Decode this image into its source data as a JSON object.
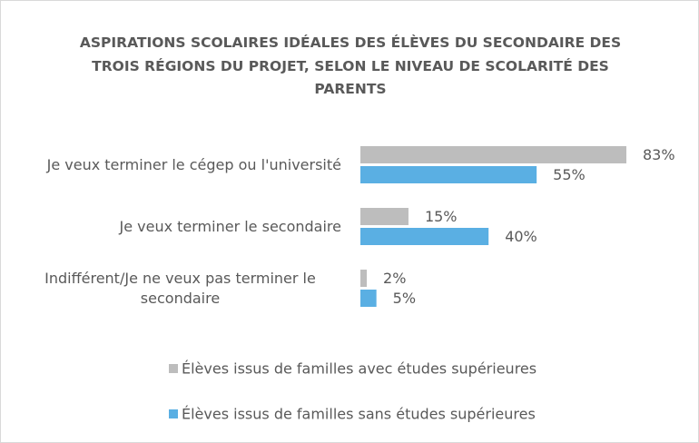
{
  "chart_data": {
    "type": "bar",
    "orientation": "horizontal",
    "title": "ASPIRATIONS SCOLAIRES IDÉALES DES ÉLÈVES DU SECONDAIRE DES TROIS RÉGIONS DU PROJET, SELON LE NIVEAU DE SCOLARITÉ DES PARENTS",
    "categories": [
      "Je veux terminer le cégep ou l'université",
      "Je veux terminer le secondaire",
      "Indifférent/Je ne veux pas terminer le secondaire"
    ],
    "series": [
      {
        "name": "Élèves issus de familles avec études supérieures",
        "color": "#bdbdbd",
        "values": [
          83,
          15,
          2
        ],
        "value_labels": [
          "83%",
          "15%",
          "2%"
        ]
      },
      {
        "name": "Élèves issus de familles sans études supérieures",
        "color": "#5aafe3",
        "values": [
          55,
          40,
          5
        ],
        "value_labels": [
          "55%",
          "40%",
          "5%"
        ]
      }
    ]
  }
}
